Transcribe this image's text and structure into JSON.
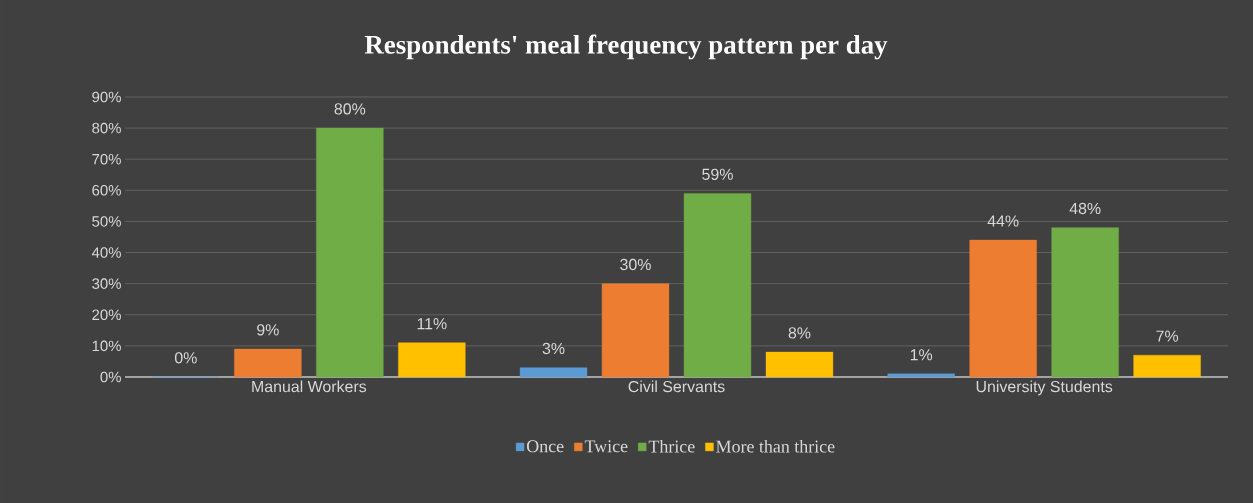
{
  "chart_data": {
    "type": "bar",
    "title": "Respondents' meal frequency pattern per day",
    "categories": [
      "Manual Workers",
      "Civil Servants",
      "University Students"
    ],
    "series": [
      {
        "name": "Once",
        "color": "#5b9bd5",
        "values": [
          0,
          3,
          1
        ],
        "value_labels": [
          "0%",
          "3%",
          "1%"
        ]
      },
      {
        "name": "Twice",
        "color": "#ed7d31",
        "values": [
          9,
          30,
          44
        ],
        "value_labels": [
          "9%",
          "30%",
          "44%"
        ]
      },
      {
        "name": "Thrice",
        "color": "#70ad47",
        "values": [
          80,
          59,
          48
        ],
        "value_labels": [
          "80%",
          "59%",
          "48%"
        ]
      },
      {
        "name": "More than thrice",
        "color": "#ffc000",
        "values": [
          11,
          8,
          7
        ],
        "value_labels": [
          "11%",
          "8%",
          "7%"
        ]
      }
    ],
    "ylim": [
      0,
      90
    ],
    "yticks": [
      {
        "value": 0,
        "label": "0%"
      },
      {
        "value": 10,
        "label": "10%"
      },
      {
        "value": 20,
        "label": "20%"
      },
      {
        "value": 30,
        "label": "30%"
      },
      {
        "value": 40,
        "label": "40%"
      },
      {
        "value": 50,
        "label": "50%"
      },
      {
        "value": 60,
        "label": "60%"
      },
      {
        "value": 70,
        "label": "70%"
      },
      {
        "value": 80,
        "label": "80%"
      },
      {
        "value": 90,
        "label": "90%"
      }
    ],
    "grid": "y",
    "legend": "bottom"
  }
}
